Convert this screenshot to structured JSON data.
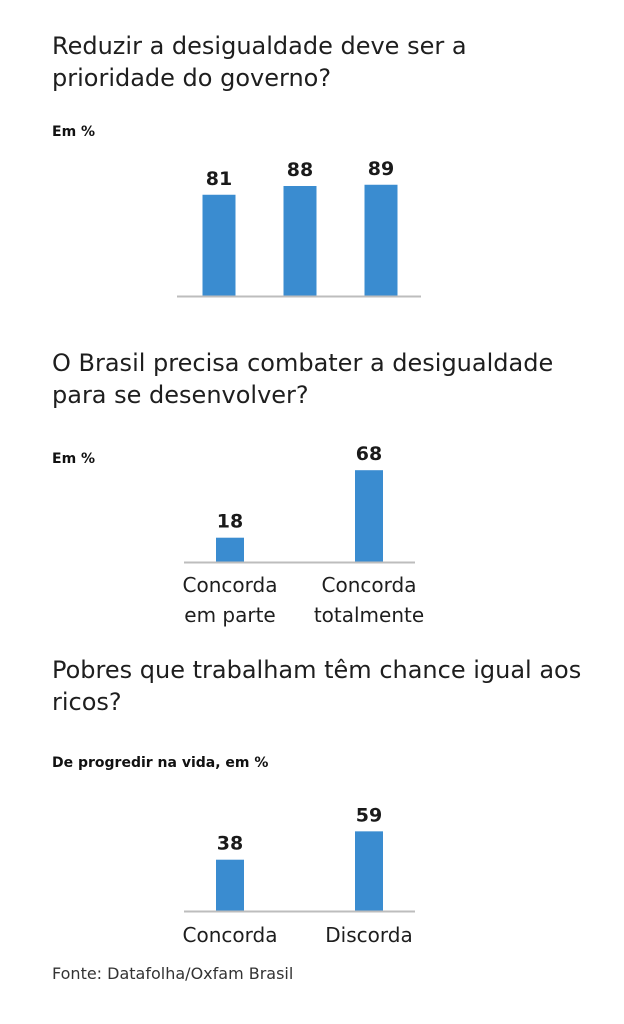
{
  "source": "Fonte: Datafolha/Oxfam Brasil",
  "colors": {
    "bar": "#3a8cd0",
    "axis": "#bdbdbd"
  },
  "chart_data": [
    {
      "type": "bar",
      "title": "Reduzir a desigualdade deve ser a prioridade do governo?",
      "subtitle": "Em %",
      "categories": [
        "",
        "",
        ""
      ],
      "values": [
        81,
        88,
        89
      ],
      "ylim": [
        0,
        100
      ]
    },
    {
      "type": "bar",
      "title": "O Brasil precisa combater a desigualdade para se desenvolver?",
      "subtitle": "Em %",
      "categories": [
        "Concorda em parte",
        "Concorda totalmente"
      ],
      "values": [
        18,
        68
      ],
      "ylim": [
        0,
        100
      ]
    },
    {
      "type": "bar",
      "title": "Pobres que trabalham têm chance igual aos ricos?",
      "subtitle": "De progredir na vida, em %",
      "categories": [
        "Concorda",
        "Discorda"
      ],
      "values": [
        38,
        59
      ],
      "ylim": [
        0,
        100
      ]
    }
  ]
}
